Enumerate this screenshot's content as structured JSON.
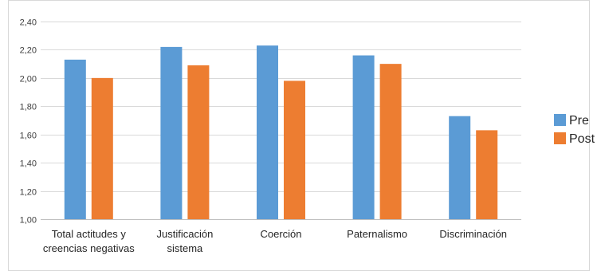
{
  "chart_data": {
    "type": "bar",
    "categories": [
      [
        "Total actitudes y",
        "creencias negativas"
      ],
      [
        "Justificación",
        "sistema"
      ],
      [
        "Coerción"
      ],
      [
        "Paternalismo"
      ],
      [
        "Discriminación"
      ]
    ],
    "series": [
      {
        "name": "Pre",
        "color": "#5B9BD5",
        "values": [
          2.13,
          2.22,
          2.23,
          2.16,
          1.73
        ]
      },
      {
        "name": "Post",
        "color": "#ED7D31",
        "values": [
          2.0,
          2.09,
          1.98,
          2.1,
          1.63
        ]
      }
    ],
    "yticks": [
      "1,00",
      "1,20",
      "1,40",
      "1,60",
      "1,80",
      "2,00",
      "2,20",
      "2,40"
    ],
    "ylim": [
      1.0,
      2.4
    ],
    "grid": true,
    "legend_position": "right",
    "gridline_color": "#D9D9D9",
    "axis_color": "#BFBFBF",
    "border_color": "#D9D9D9"
  }
}
